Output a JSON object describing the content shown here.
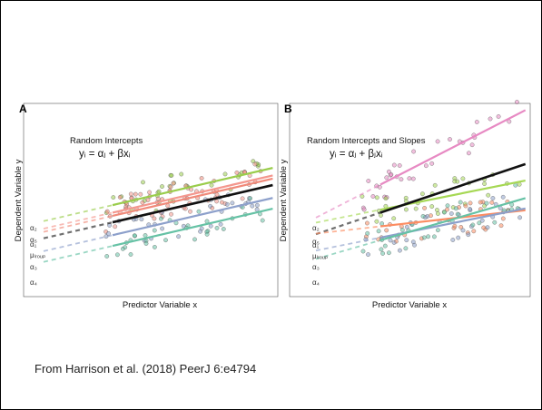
{
  "caption": "From Harrison et al. (2018) PeerJ 6:e4794",
  "chart_data": [
    {
      "type": "scatter",
      "panel_letter": "A",
      "title": "Random Intercepts",
      "equation": "yᵢ = αⱼ + βxᵢ",
      "xlabel": "Predictor Variable x",
      "ylabel": "Dependent Variable y",
      "xlim": [
        0,
        10
      ],
      "ylim": [
        -4,
        14
      ],
      "group_labels": [
        "α₂",
        "α₅",
        "α₁",
        "μₗᵣₒᵤₚ",
        "α₃",
        "α₄"
      ],
      "series": [
        {
          "label": "α₂",
          "color": "#9acd4c",
          "intercept": 2.6,
          "slope": 0.55
        },
        {
          "label": "α₅",
          "color": "#f4978e",
          "intercept": 1.9,
          "slope": 0.55
        },
        {
          "label": "α₁",
          "color": "#f08a7a",
          "intercept": 1.6,
          "slope": 0.55
        },
        {
          "label": "μₗᵣₒᵤₚ",
          "color": "#111111",
          "intercept": 1.0,
          "slope": 0.55
        },
        {
          "label": "α₃",
          "color": "#8da0cb",
          "intercept": -0.2,
          "slope": 0.55
        },
        {
          "label": "α₄",
          "color": "#66c2a5",
          "intercept": -1.2,
          "slope": 0.55
        }
      ]
    },
    {
      "type": "scatter",
      "panel_letter": "B",
      "title": "Random Intercepts and Slopes",
      "equation": "yᵢ = αⱼ + βⱼxᵢ",
      "xlabel": "Predictor Variable x",
      "ylabel": "Dependent Variable y",
      "xlim": [
        0,
        10
      ],
      "ylim": [
        -4,
        14
      ],
      "group_labels": [
        "α₂",
        "α₅",
        "α₁",
        "μₗᵣₒᵤₚ",
        "α₃",
        "α₄"
      ],
      "series": [
        {
          "label": "α₅",
          "color": "#e78ac3",
          "intercept": 2.1,
          "slope": 1.15
        },
        {
          "label": "α₂",
          "color": "#a6d854",
          "intercept": 2.4,
          "slope": 0.45
        },
        {
          "label": "μₗᵣₒᵤₚ",
          "color": "#111111",
          "intercept": 1.0,
          "slope": 0.75
        },
        {
          "label": "α₁",
          "color": "#fc8d62",
          "intercept": 1.6,
          "slope": 0.25
        },
        {
          "label": "α₃",
          "color": "#8da0cb",
          "intercept": -0.2,
          "slope": 0.45
        },
        {
          "label": "α₄",
          "color": "#66c2a5",
          "intercept": -1.2,
          "slope": 0.65
        }
      ]
    }
  ]
}
